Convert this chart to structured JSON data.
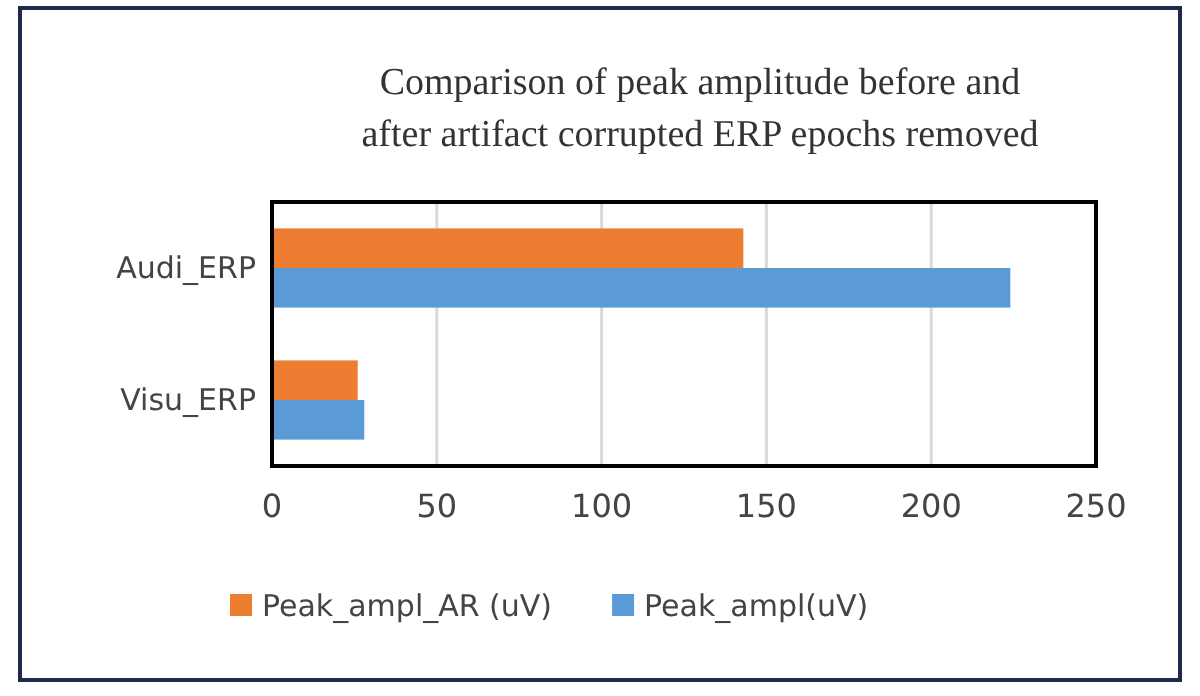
{
  "chart_data": {
    "type": "bar",
    "orientation": "horizontal",
    "title": "Comparison of peak amplitude before and after artifact corrupted ERP epochs removed",
    "categories": [
      "Audi_ERP",
      "Visu_ERP"
    ],
    "series": [
      {
        "name": "Peak_ampl_AR (uV)",
        "color": "#ed7d31",
        "values": [
          143,
          26
        ]
      },
      {
        "name": "Peak_ampl(uV)",
        "color": "#5b9bd5",
        "values": [
          224,
          28
        ]
      }
    ],
    "xlim": [
      0,
      250
    ],
    "xticks": [
      0,
      50,
      100,
      150,
      200,
      250
    ],
    "grid": "x",
    "legend": "bottom"
  }
}
